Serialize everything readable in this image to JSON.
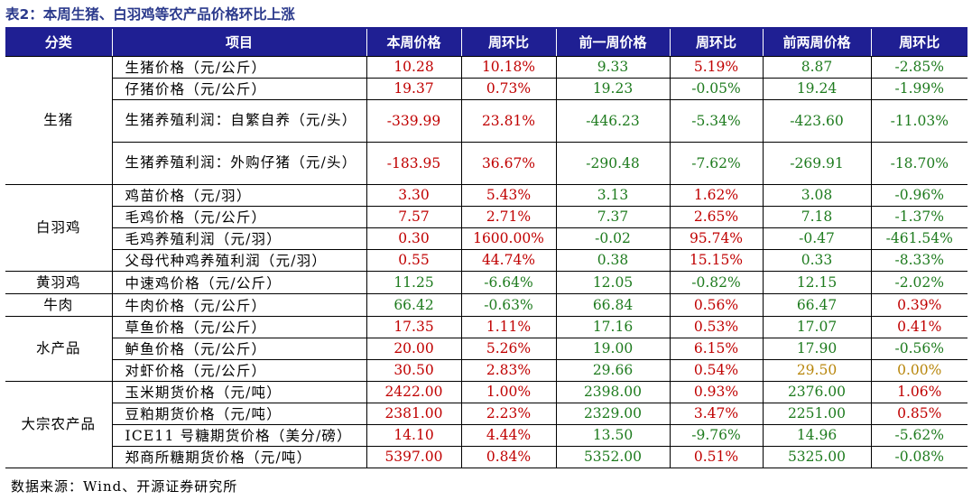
{
  "title": "表2：本周生猪、白羽鸡等农产品价格环比上涨",
  "headers": [
    "分类",
    "项目",
    "本周价格",
    "周环比",
    "前一周价格",
    "周环比",
    "前两周价格",
    "周环比"
  ],
  "categories": {
    "pig": "生猪",
    "broiler": "白羽鸡",
    "yellow": "黄羽鸡",
    "beef": "牛肉",
    "aquatic": "水产品",
    "bulk": "大宗农产品"
  },
  "rows": [
    {
      "item": "生猪价格（元/公斤）",
      "p0": "10.28",
      "c0": "10.18%",
      "p1": "9.33",
      "c1": "5.19%",
      "p2": "8.87",
      "c2": "-2.85%"
    },
    {
      "item": "仔猪价格（元/公斤）",
      "p0": "19.37",
      "c0": "0.73%",
      "p1": "19.23",
      "c1": "-0.05%",
      "p2": "19.24",
      "c2": "-1.99%"
    },
    {
      "item": "生猪养殖利润：自繁自养（元/头）",
      "p0": "-339.99",
      "c0": "23.81%",
      "p1": "-446.23",
      "c1": "-5.34%",
      "p2": "-423.60",
      "c2": "-11.03%"
    },
    {
      "item": "生猪养殖利润：外购仔猪（元/头）",
      "p0": "-183.95",
      "c0": "36.67%",
      "p1": "-290.48",
      "c1": "-7.62%",
      "p2": "-269.91",
      "c2": "-18.70%"
    },
    {
      "item": "鸡苗价格（元/羽）",
      "p0": "3.30",
      "c0": "5.43%",
      "p1": "3.13",
      "c1": "1.62%",
      "p2": "3.08",
      "c2": "-0.96%"
    },
    {
      "item": "毛鸡价格（元/公斤）",
      "p0": "7.57",
      "c0": "2.71%",
      "p1": "7.37",
      "c1": "2.65%",
      "p2": "7.18",
      "c2": "-1.37%"
    },
    {
      "item": "毛鸡养殖利润（元/羽）",
      "p0": "0.30",
      "c0": "1600.00%",
      "p1": "-0.02",
      "c1": "95.74%",
      "p2": "-0.47",
      "c2": "-461.54%"
    },
    {
      "item": "父母代种鸡养殖利润（元/羽）",
      "p0": "0.55",
      "c0": "44.74%",
      "p1": "0.38",
      "c1": "15.15%",
      "p2": "0.33",
      "c2": "-8.33%"
    },
    {
      "item": "中速鸡价格（元/公斤）",
      "p0": "11.25",
      "c0": "-6.64%",
      "p1": "12.05",
      "c1": "-0.82%",
      "p2": "12.15",
      "c2": "-2.02%"
    },
    {
      "item": "牛肉价格（元/公斤）",
      "p0": "66.42",
      "c0": "-0.63%",
      "p1": "66.84",
      "c1": "0.56%",
      "p2": "66.47",
      "c2": "0.39%"
    },
    {
      "item": "草鱼价格（元/公斤）",
      "p0": "17.35",
      "c0": "1.11%",
      "p1": "17.16",
      "c1": "0.53%",
      "p2": "17.07",
      "c2": "0.41%"
    },
    {
      "item": "鲈鱼价格（元/公斤）",
      "p0": "20.00",
      "c0": "5.26%",
      "p1": "19.00",
      "c1": "6.15%",
      "p2": "17.90",
      "c2": "-0.56%"
    },
    {
      "item": "对虾价格（元/公斤）",
      "p0": "30.50",
      "c0": "2.83%",
      "p1": "29.66",
      "c1": "0.54%",
      "p2": "29.50",
      "c2": "0.00%"
    },
    {
      "item": "玉米期货价格（元/吨）",
      "p0": "2422.00",
      "c0": "1.00%",
      "p1": "2398.00",
      "c1": "0.93%",
      "p2": "2376.00",
      "c2": "1.06%"
    },
    {
      "item": "豆粕期货价格（元/吨）",
      "p0": "2381.00",
      "c0": "2.23%",
      "p1": "2329.00",
      "c1": "3.47%",
      "p2": "2251.00",
      "c2": "0.85%"
    },
    {
      "item": "ICE11 号糖期货价格（美分/磅）",
      "p0": "14.10",
      "c0": "4.44%",
      "p1": "13.50",
      "c1": "-9.76%",
      "p2": "14.96",
      "c2": "-5.62%"
    },
    {
      "item": "郑商所糖期货价格（元/吨）",
      "p0": "5397.00",
      "c0": "0.84%",
      "p1": "5352.00",
      "c1": "0.51%",
      "p2": "5325.00",
      "c2": "-0.08%"
    }
  ],
  "colors": {
    "header_bg": "#1f1f93",
    "up": "#c00000",
    "down": "#1e7b1e",
    "flat": "#b8860b",
    "title": "#2b3a8c"
  },
  "footer": "数据来源：Wind、开源证券研究所"
}
